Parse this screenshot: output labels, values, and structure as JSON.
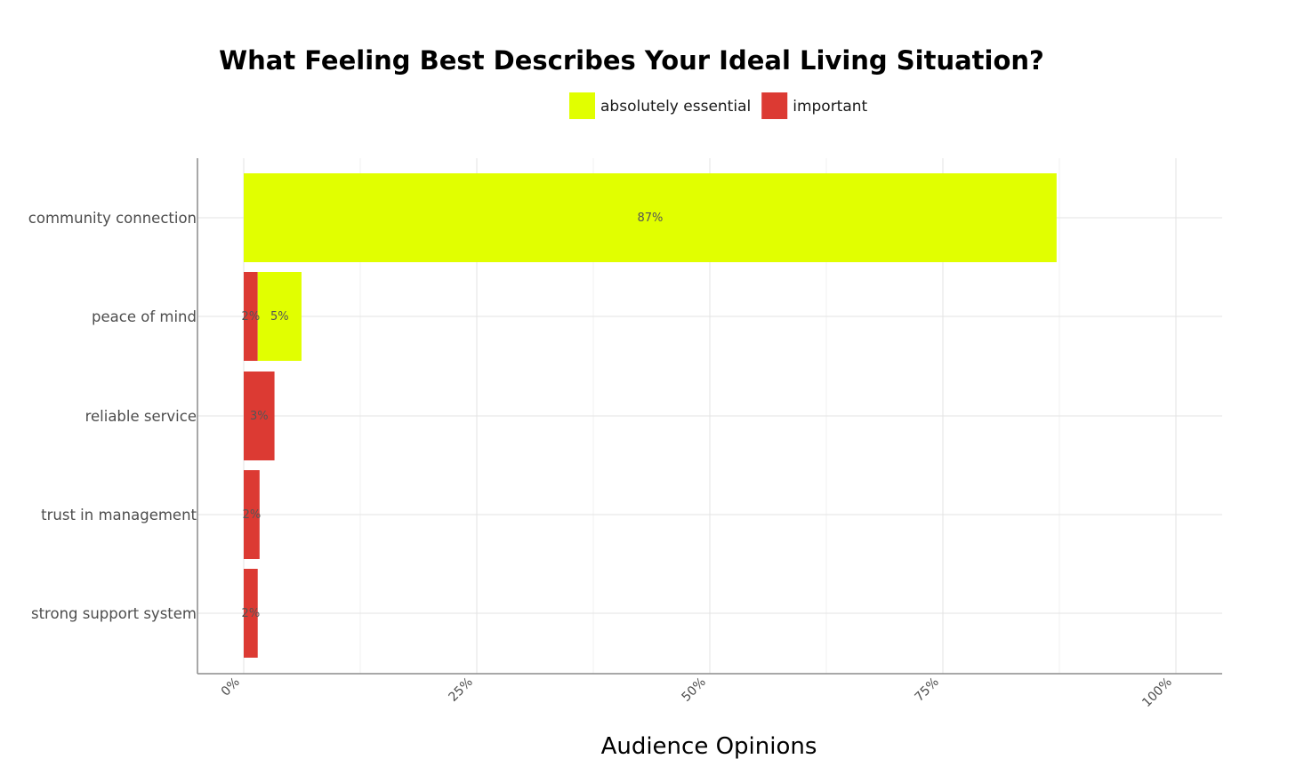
{
  "chart_data": {
    "type": "bar",
    "orientation": "horizontal",
    "stacked": true,
    "title": "What Feeling Best Describes Your Ideal Living Situation?",
    "xlabel": "Audience Opinions",
    "ylabel": "",
    "xlim": [
      0,
      1.05
    ],
    "x_ticks": [
      0,
      0.25,
      0.5,
      0.75,
      1.0
    ],
    "x_tick_labels": [
      "0%",
      "25%",
      "50%",
      "75%",
      "100%"
    ],
    "categories": [
      "community connection",
      "peace of mind",
      "reliable service",
      "trust in management",
      "strong support system"
    ],
    "series": [
      {
        "name": "important",
        "color": "#dc3a33",
        "values": [
          0,
          0.015,
          0.033,
          0.017,
          0.015
        ],
        "labels": [
          "",
          "2%",
          "3%",
          "2%",
          "2%"
        ]
      },
      {
        "name": "absolutely essential",
        "color": "#e1ff00",
        "values": [
          0.872,
          0.047,
          0,
          0,
          0
        ],
        "labels": [
          "87%",
          "5%",
          "",
          "",
          ""
        ]
      }
    ],
    "legend_order": [
      "absolutely essential",
      "important"
    ],
    "legend_position": "top",
    "grid": true
  }
}
